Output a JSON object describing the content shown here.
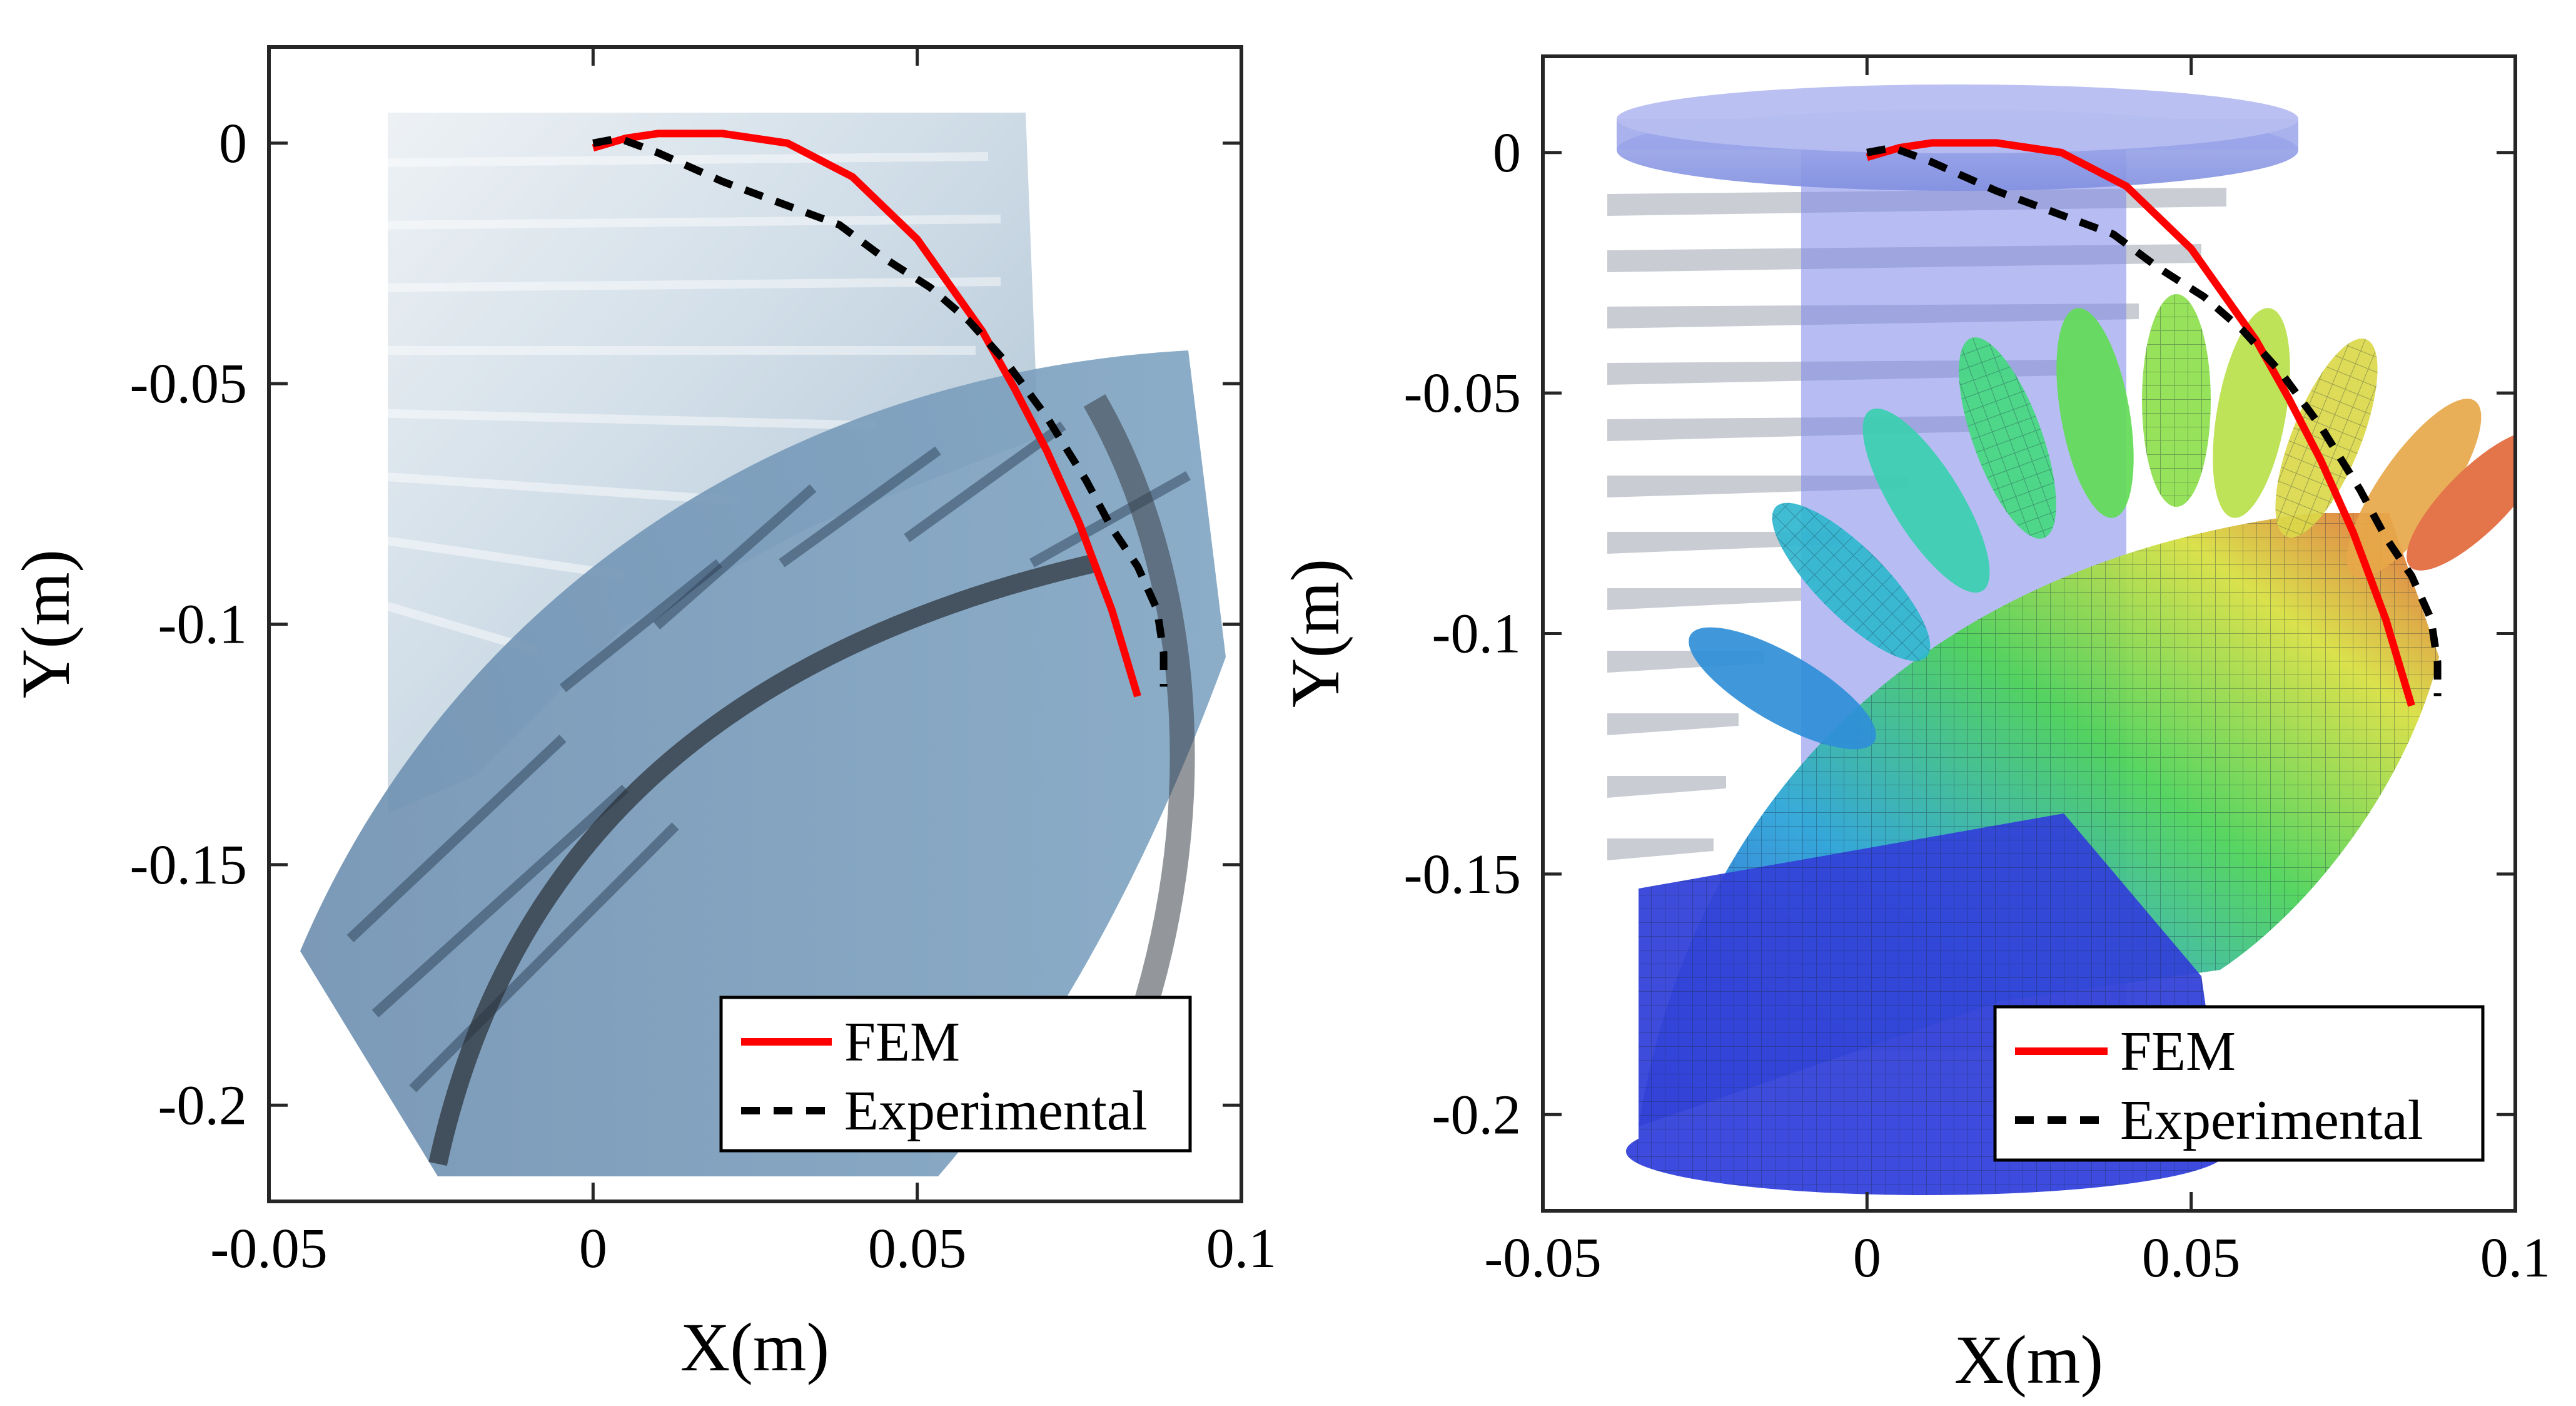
{
  "chart_data": [
    {
      "type": "line",
      "xlabel": "X(m)",
      "ylabel": "Y(m)",
      "xlim": [
        -0.05,
        0.1
      ],
      "ylim": [
        -0.22,
        0.02
      ],
      "xticks": [
        -0.05,
        0,
        0.05,
        0.1
      ],
      "xtick_labels": [
        "-0.05",
        "0",
        "0.05",
        "0.1"
      ],
      "yticks": [
        0,
        -0.05,
        -0.1,
        -0.15,
        -0.2
      ],
      "ytick_labels": [
        "0",
        "-0.05",
        "-0.1",
        "-0.15",
        "-0.2"
      ],
      "background": "photograph of soft pneumatic actuator bending, blue tint",
      "legend_position": "bottom-right",
      "series": [
        {
          "name": "FEM",
          "style": "solid",
          "color": "#ff0000",
          "x": [
            0,
            0.005,
            0.01,
            0.015,
            0.02,
            0.03,
            0.04,
            0.05,
            0.06,
            0.065,
            0.07,
            0.075,
            0.08,
            0.084
          ],
          "y": [
            -0.001,
            0.001,
            0.002,
            0.002,
            0.002,
            0.0,
            -0.007,
            -0.02,
            -0.039,
            -0.051,
            -0.064,
            -0.079,
            -0.097,
            -0.115
          ]
        },
        {
          "name": "Experimental",
          "style": "dashed",
          "color": "#000000",
          "x": [
            0,
            0.004,
            0.01,
            0.02,
            0.03,
            0.038,
            0.045,
            0.052,
            0.058,
            0.064,
            0.07,
            0.076,
            0.08,
            0.084,
            0.087,
            0.088,
            0.088
          ],
          "y": [
            0.0,
            0.001,
            -0.002,
            -0.008,
            -0.013,
            -0.017,
            -0.024,
            -0.03,
            -0.037,
            -0.046,
            -0.057,
            -0.07,
            -0.08,
            -0.088,
            -0.097,
            -0.106,
            -0.113
          ]
        }
      ]
    },
    {
      "type": "line",
      "xlabel": "X(m)",
      "ylabel": "Y(m)",
      "xlim": [
        -0.05,
        0.1
      ],
      "ylim": [
        -0.22,
        0.02
      ],
      "xticks": [
        -0.05,
        0,
        0.05,
        0.1
      ],
      "xtick_labels": [
        "-0.05",
        "0",
        "0.05",
        "0.1"
      ],
      "yticks": [
        0,
        -0.05,
        -0.1,
        -0.15,
        -0.2
      ],
      "ytick_labels": [
        "0",
        "-0.05",
        "-0.1",
        "-0.15",
        "-0.2"
      ],
      "background": "finite element mesh rendering, colour gradient blue to green to yellow to red",
      "legend_position": "bottom-right",
      "series": [
        {
          "name": "FEM",
          "style": "solid",
          "color": "#ff0000",
          "x": [
            0,
            0.005,
            0.01,
            0.015,
            0.02,
            0.03,
            0.04,
            0.05,
            0.06,
            0.065,
            0.07,
            0.075,
            0.08,
            0.084
          ],
          "y": [
            -0.001,
            0.001,
            0.002,
            0.002,
            0.002,
            0.0,
            -0.007,
            -0.02,
            -0.039,
            -0.051,
            -0.064,
            -0.079,
            -0.097,
            -0.115
          ]
        },
        {
          "name": "Experimental",
          "style": "dashed",
          "color": "#000000",
          "x": [
            0,
            0.004,
            0.01,
            0.02,
            0.03,
            0.038,
            0.045,
            0.052,
            0.058,
            0.064,
            0.07,
            0.076,
            0.08,
            0.084,
            0.087,
            0.088,
            0.088
          ],
          "y": [
            0.0,
            0.001,
            -0.002,
            -0.008,
            -0.013,
            -0.017,
            -0.024,
            -0.03,
            -0.037,
            -0.046,
            -0.057,
            -0.07,
            -0.08,
            -0.088,
            -0.097,
            -0.106,
            -0.113
          ]
        }
      ]
    }
  ]
}
